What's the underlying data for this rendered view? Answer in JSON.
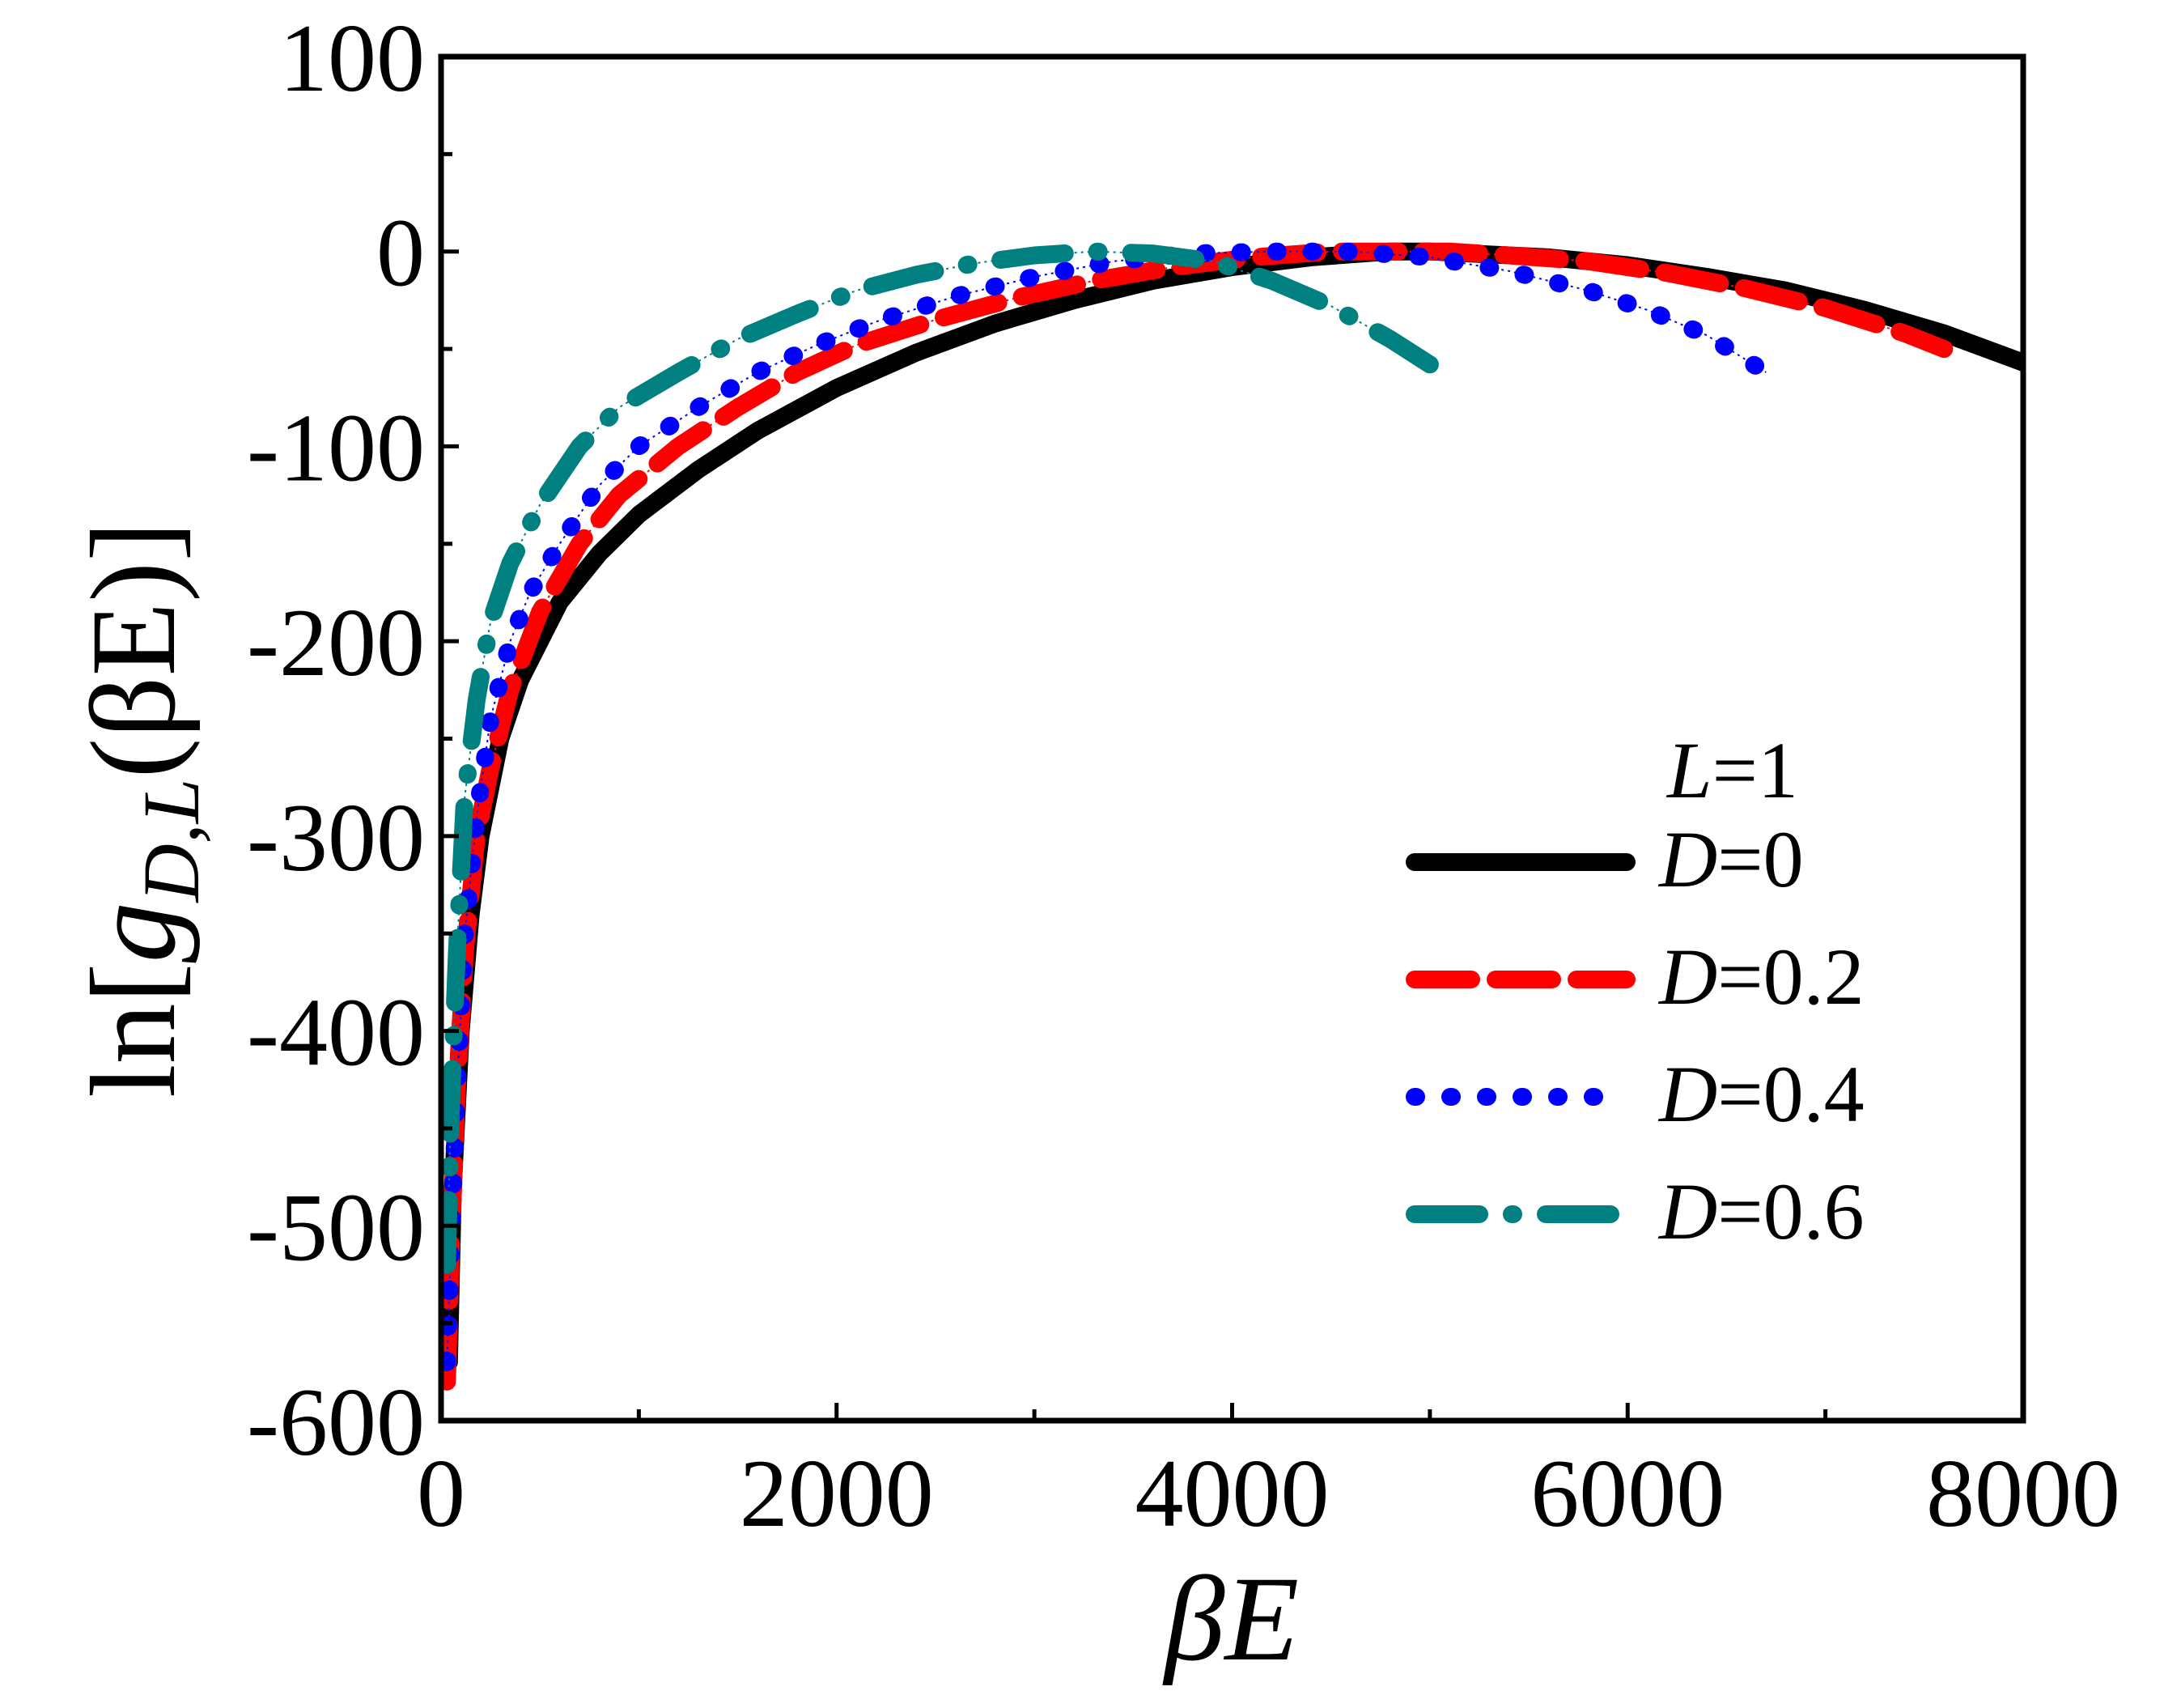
{
  "chart_data": {
    "type": "line",
    "title": "",
    "xlabel": "βE",
    "ylabel": "ln[g_{D,L}(βE)]",
    "ylabel_parts": {
      "prefix": "ln[",
      "main": "g",
      "subscript": "D,L",
      "suffix": "(βE)]"
    },
    "xlim": [
      0,
      8000
    ],
    "ylim": [
      -600,
      100
    ],
    "x_ticks": [
      0,
      2000,
      4000,
      6000,
      8000
    ],
    "x_tick_labels": [
      "0",
      "2000",
      "4000",
      "6000",
      "8000"
    ],
    "y_ticks": [
      100,
      0,
      -100,
      -200,
      -300,
      -400,
      -500,
      -600
    ],
    "y_tick_labels": [
      "100",
      "0",
      "-100",
      "-200",
      "-300",
      "-400",
      "-500",
      "-600"
    ],
    "grid": false,
    "legend": {
      "position": "bottom-right",
      "header_var": "L",
      "header_rest": "=1",
      "entries": [
        {
          "var": "D",
          "rest": "=0"
        },
        {
          "var": "D",
          "rest": "=0.2"
        },
        {
          "var": "D",
          "rest": "=0.4"
        },
        {
          "var": "D",
          "rest": "=0.6"
        }
      ]
    },
    "series": [
      {
        "name": "D=0",
        "color": "#000000",
        "style": "solid",
        "x": [
          40,
          60,
          100,
          150,
          200,
          300,
          400,
          600,
          800,
          1000,
          1300,
          1600,
          2000,
          2400,
          2800,
          3200,
          3600,
          4000,
          4400,
          4800,
          5000,
          5200,
          5600,
          6000,
          6400,
          6800,
          7200,
          7600,
          8000
        ],
        "y": [
          -570,
          -480,
          -400,
          -340,
          -300,
          -250,
          -220,
          -180,
          -155,
          -135,
          -112,
          -92,
          -70,
          -52,
          -37,
          -25,
          -15,
          -8,
          -3,
          0,
          0,
          -1,
          -3,
          -7,
          -13,
          -20,
          -30,
          -42,
          -57
        ]
      },
      {
        "name": "D=0.2",
        "color": "#ff0000",
        "style": "dashed",
        "x": [
          30,
          50,
          80,
          120,
          180,
          250,
          350,
          500,
          700,
          900,
          1200,
          1500,
          1800,
          2100,
          2500,
          2900,
          3300,
          3700,
          4100,
          4500,
          4800,
          5100,
          5400,
          5800,
          6200,
          6600,
          7000,
          7400,
          7600
        ],
        "y": [
          -580,
          -510,
          -430,
          -360,
          -300,
          -265,
          -225,
          -185,
          -150,
          -125,
          -100,
          -80,
          -62,
          -48,
          -35,
          -24,
          -15,
          -8,
          -3,
          0,
          0,
          0,
          -2,
          -5,
          -11,
          -19,
          -29,
          -42,
          -50
        ]
      },
      {
        "name": "D=0.4",
        "color": "#0000ff",
        "style": "dotted",
        "x": [
          30,
          50,
          80,
          120,
          180,
          250,
          350,
          450,
          600,
          800,
          1000,
          1300,
          1600,
          1900,
          2200,
          2600,
          3000,
          3400,
          3800,
          4200,
          4600,
          5000,
          5400,
          5800,
          6100,
          6400,
          6700
        ],
        "y": [
          -570,
          -510,
          -430,
          -350,
          -290,
          -240,
          -200,
          -175,
          -150,
          -120,
          -100,
          -80,
          -62,
          -48,
          -36,
          -23,
          -13,
          -5,
          -1,
          0,
          0,
          -3,
          -10,
          -20,
          -30,
          -43,
          -62
        ]
      },
      {
        "name": "D=0.6",
        "color": "#008080",
        "style": "dashdot",
        "x": [
          30,
          50,
          80,
          120,
          180,
          250,
          350,
          500,
          700,
          900,
          1200,
          1500,
          1800,
          2100,
          2400,
          2700,
          3000,
          3300,
          3600,
          3900,
          4200,
          4500,
          4800,
          5000
        ],
        "y": [
          -520,
          -440,
          -360,
          -280,
          -230,
          -190,
          -160,
          -130,
          -100,
          -80,
          -62,
          -45,
          -32,
          -20,
          -12,
          -6,
          -2,
          0,
          -1,
          -5,
          -15,
          -28,
          -45,
          -58
        ]
      }
    ]
  }
}
